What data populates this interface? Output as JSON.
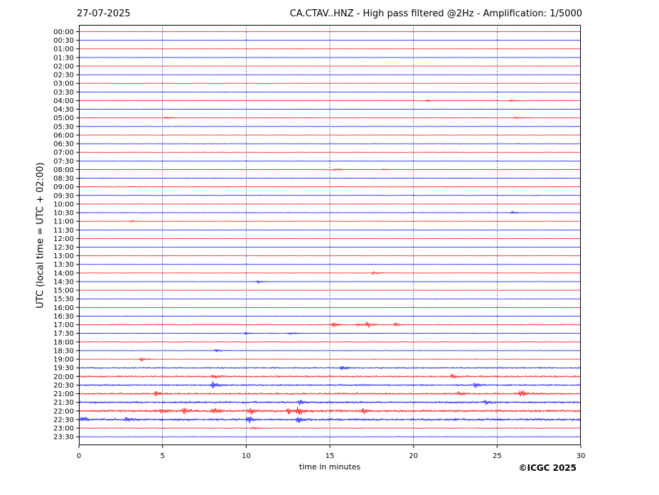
{
  "header": {
    "date": "27-07-2025",
    "title": "CA.CTAV..HNZ - High pass filtered @2Hz - Amplification: 1/5000"
  },
  "footer": {
    "copyright": "©ICGC 2025"
  },
  "chart_data": {
    "type": "line",
    "title": "CA.CTAV..HNZ - High pass filtered @2Hz - Amplification: 1/5000",
    "xlabel": "time in minutes",
    "ylabel": "UTC (local time = UTC + 02:00)",
    "xlim": [
      0,
      30
    ],
    "x_ticks": [
      0,
      5,
      10,
      15,
      20,
      25,
      30
    ],
    "grid": "vertical dotted lines at x = 5, 10, 15, 20, 25",
    "colors": {
      "red_trace": "#ff0000",
      "blue_trace": "#0000ff",
      "grid": "#000080"
    },
    "trace_color_order": [
      "red",
      "blue"
    ],
    "row_labels": [
      "00:00",
      "00:30",
      "01:00",
      "01:30",
      "02:00",
      "02:30",
      "03:00",
      "03:30",
      "04:00",
      "04:30",
      "05:00",
      "05:30",
      "06:00",
      "06:30",
      "07:00",
      "07:30",
      "08:00",
      "08:30",
      "09:00",
      "09:30",
      "10:00",
      "10:30",
      "11:00",
      "11:30",
      "12:00",
      "12:30",
      "13:00",
      "13:30",
      "14:00",
      "14:30",
      "15:00",
      "15:30",
      "16:00",
      "16:30",
      "17:00",
      "17:30",
      "18:00",
      "18:30",
      "19:00",
      "19:30",
      "20:00",
      "20:30",
      "21:00",
      "21:30",
      "22:00",
      "22:30",
      "23:00",
      "23:30"
    ],
    "row_noise": [
      0.2,
      0.2,
      0.25,
      0.2,
      0.2,
      0.2,
      0.2,
      0.25,
      0.4,
      0.3,
      0.4,
      0.35,
      0.35,
      0.3,
      0.35,
      0.3,
      0.45,
      0.5,
      0.5,
      0.4,
      0.4,
      0.45,
      0.4,
      0.3,
      0.3,
      0.35,
      0.3,
      0.3,
      0.35,
      0.35,
      0.35,
      0.3,
      0.35,
      0.4,
      0.6,
      0.5,
      0.5,
      0.45,
      0.45,
      0.9,
      1.1,
      1.1,
      1.2,
      1.4,
      1.6,
      1.6,
      0.6,
      0.4
    ],
    "events": [
      {
        "row": 8,
        "x": 25.8,
        "amp": 3
      },
      {
        "row": 8,
        "x": 20.8,
        "amp": 1.5
      },
      {
        "row": 10,
        "x": 5.2,
        "amp": 2.5
      },
      {
        "row": 10,
        "x": 26.1,
        "amp": 2
      },
      {
        "row": 16,
        "x": 15.3,
        "amp": 2
      },
      {
        "row": 16,
        "x": 18.2,
        "amp": 1.5
      },
      {
        "row": 21,
        "x": 25.9,
        "amp": 2.5
      },
      {
        "row": 22,
        "x": 3.1,
        "amp": 1.8
      },
      {
        "row": 28,
        "x": 17.6,
        "amp": 3
      },
      {
        "row": 29,
        "x": 10.7,
        "amp": 3
      },
      {
        "row": 34,
        "x": 15.2,
        "amp": 4
      },
      {
        "row": 34,
        "x": 16.7,
        "amp": 4
      },
      {
        "row": 34,
        "x": 17.2,
        "amp": 6
      },
      {
        "row": 34,
        "x": 18.9,
        "amp": 4
      },
      {
        "row": 35,
        "x": 10.0,
        "amp": 2.5
      },
      {
        "row": 35,
        "x": 12.6,
        "amp": 2.5
      },
      {
        "row": 37,
        "x": 8.2,
        "amp": 3
      },
      {
        "row": 38,
        "x": 3.7,
        "amp": 4
      },
      {
        "row": 39,
        "x": 15.7,
        "amp": 4
      },
      {
        "row": 40,
        "x": 22.3,
        "amp": 4
      },
      {
        "row": 40,
        "x": 8.0,
        "amp": 4
      },
      {
        "row": 41,
        "x": 23.7,
        "amp": 5
      },
      {
        "row": 41,
        "x": 8.0,
        "amp": 7
      },
      {
        "row": 42,
        "x": 4.6,
        "amp": 5
      },
      {
        "row": 42,
        "x": 22.7,
        "amp": 4
      },
      {
        "row": 42,
        "x": 26.4,
        "amp": 8
      },
      {
        "row": 43,
        "x": 13.2,
        "amp": 5
      },
      {
        "row": 43,
        "x": 24.3,
        "amp": 4
      },
      {
        "row": 44,
        "x": 13.1,
        "amp": 8
      },
      {
        "row": 44,
        "x": 12.5,
        "amp": 5
      },
      {
        "row": 44,
        "x": 6.3,
        "amp": 6
      },
      {
        "row": 44,
        "x": 4.9,
        "amp": 4
      },
      {
        "row": 44,
        "x": 8.0,
        "amp": 6
      },
      {
        "row": 44,
        "x": 10.2,
        "amp": 5
      },
      {
        "row": 44,
        "x": 17.0,
        "amp": 4
      },
      {
        "row": 45,
        "x": 13.1,
        "amp": 6
      },
      {
        "row": 45,
        "x": 2.8,
        "amp": 4
      },
      {
        "row": 45,
        "x": 10.1,
        "amp": 5
      },
      {
        "row": 45,
        "x": 0.2,
        "amp": 4
      },
      {
        "row": 46,
        "x": 10.4,
        "amp": 2.5
      }
    ]
  }
}
